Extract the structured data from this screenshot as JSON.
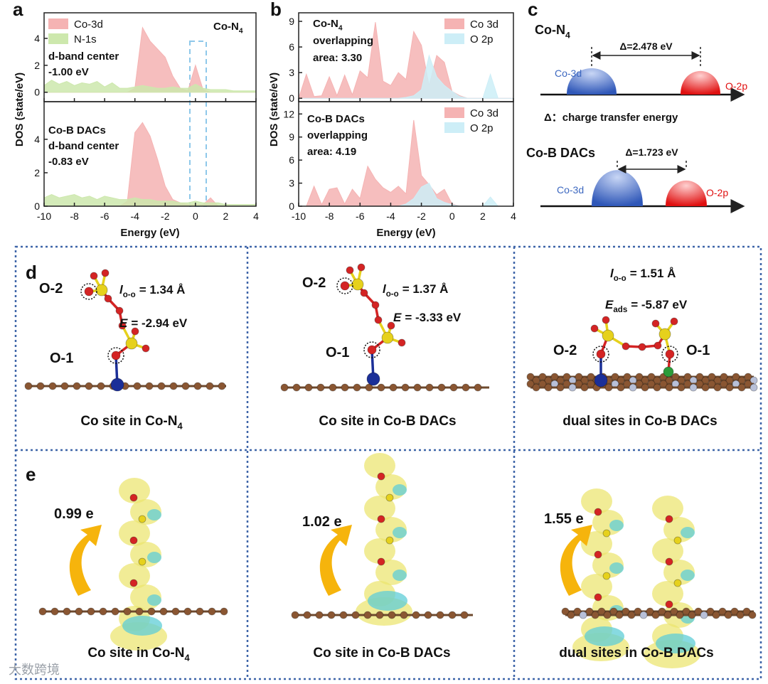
{
  "panel_labels": [
    "a",
    "b",
    "c",
    "d",
    "e"
  ],
  "chart_data": [
    {
      "type": "area",
      "ylabel": "DOS (state/eV)",
      "x": [
        -10,
        -9.5,
        -9,
        -8.5,
        -8,
        -7.5,
        -7,
        -6.5,
        -6,
        -5.5,
        -5,
        -4.5,
        -4,
        -3.5,
        -3,
        -2.5,
        -2,
        -1.5,
        -1,
        -0.5,
        0,
        0.5,
        1,
        1.5,
        2,
        2.5,
        3,
        3.5,
        4
      ],
      "series": [
        {
          "name": "Co-3d",
          "color": "#f5b3b3",
          "values": [
            0,
            0,
            0,
            0,
            0,
            0,
            0,
            0,
            0,
            0,
            0,
            0,
            0.3,
            4.8,
            3.8,
            3.2,
            2.6,
            1.2,
            0.3,
            0.1,
            2.0,
            0.2,
            0,
            0,
            0,
            0,
            0,
            0,
            0
          ]
        },
        {
          "name": "N-1s",
          "color": "#cde8ad",
          "values": [
            0.5,
            0.9,
            0.6,
            0.8,
            0.5,
            0.7,
            0.6,
            0.8,
            0.4,
            0.7,
            0.3,
            0.3,
            0.4,
            0.5,
            0.4,
            0.3,
            0.3,
            0.4,
            0.3,
            0.3,
            0.6,
            0.3,
            0.2,
            0.2,
            0.2,
            0.1,
            0.1,
            0.1,
            0.1
          ]
        }
      ],
      "xlim": [
        -10,
        4
      ],
      "ylim": [
        -0.7,
        5.9
      ],
      "yticks": [
        0,
        2,
        4
      ],
      "legend": "upper left",
      "annotations": [
        {
          "text": "Co-N",
          "sub": "4"
        },
        {
          "text": "d-band center"
        },
        {
          "text": "-1.00 eV"
        }
      ]
    },
    {
      "type": "area",
      "xlabel": "Energy (eV)",
      "x": [
        -10,
        -9.5,
        -9,
        -8.5,
        -8,
        -7.5,
        -7,
        -6.5,
        -6,
        -5.5,
        -5,
        -4.5,
        -4,
        -3.5,
        -3,
        -2.5,
        -2,
        -1.5,
        -1,
        -0.5,
        0,
        0.5,
        1,
        1.5,
        2,
        2.5,
        3,
        3.5,
        4
      ],
      "series": [
        {
          "color": "#f5b3b3",
          "values": [
            0,
            0,
            0,
            0,
            0,
            0,
            0,
            0,
            0,
            0,
            0,
            0.3,
            4.4,
            5.0,
            4.2,
            2.8,
            1.2,
            0.4,
            0.2,
            0.1,
            0.1,
            0.1,
            0.5,
            0,
            0,
            0,
            0,
            0,
            0
          ]
        },
        {
          "color": "#cde8ad",
          "values": [
            0.5,
            0.7,
            0.5,
            0.6,
            0.7,
            0.5,
            0.6,
            0.4,
            0.6,
            0.5,
            0.4,
            0.4,
            0.5,
            0.4,
            0.4,
            0.3,
            0.3,
            0.3,
            0.2,
            0.2,
            0.3,
            0.2,
            0.2,
            0.2,
            0.1,
            0.1,
            0.1,
            0.1,
            0.1
          ]
        }
      ],
      "xlim": [
        -10,
        4
      ],
      "xticks": [
        -10,
        -8,
        -6,
        -4,
        -2,
        0,
        2,
        4
      ],
      "ylim": [
        0,
        6.25
      ],
      "yticks": [
        0,
        2,
        4
      ],
      "annotations": [
        {
          "text": "Co-B DACs"
        },
        {
          "text": "d-band center"
        },
        {
          "text": "-0.83 eV"
        }
      ]
    },
    {
      "type": "area",
      "ylabel": "DOS (state/eV)",
      "x": [
        -10,
        -9.5,
        -9,
        -8.5,
        -8,
        -7.5,
        -7,
        -6.5,
        -6,
        -5.5,
        -5,
        -4.5,
        -4,
        -3.5,
        -3,
        -2.5,
        -2,
        -1.5,
        -1,
        -0.5,
        0,
        0.5,
        1,
        1.5,
        2,
        2.5,
        3,
        3.5,
        4
      ],
      "series": [
        {
          "name": "Co 3d",
          "color": "#f5b3b3",
          "values": [
            0,
            2.8,
            0.2,
            0.3,
            2.5,
            0.3,
            2.7,
            0.4,
            3.2,
            2.4,
            8.9,
            2.0,
            1.5,
            3.0,
            2.2,
            7.8,
            6.2,
            1.5,
            5.0,
            4.2,
            0.8,
            0.3,
            0,
            0,
            0,
            0,
            0,
            0,
            0
          ]
        },
        {
          "name": "O 2p",
          "color": "#cdeef7",
          "values": [
            0,
            0,
            0,
            0,
            0,
            0,
            0,
            0,
            0,
            0,
            0,
            0,
            0,
            0,
            0.1,
            0.3,
            1.0,
            5.0,
            2.5,
            1.5,
            0.8,
            0.2,
            0,
            0,
            0,
            2.8,
            0,
            0,
            0
          ]
        }
      ],
      "xlim": [
        -10,
        4
      ],
      "ylim": [
        -0.4,
        10
      ],
      "yticks": [
        0,
        3,
        6,
        9
      ],
      "legend": "upper right",
      "annotations": [
        {
          "text": "Co-N",
          "sub": "4"
        },
        {
          "text": "overlapping"
        },
        {
          "text": "area: 3.30"
        }
      ]
    },
    {
      "type": "area",
      "xlabel": "Energy (eV)",
      "x": [
        -10,
        -9.5,
        -9,
        -8.5,
        -8,
        -7.5,
        -7,
        -6.5,
        -6,
        -5.5,
        -5,
        -4.5,
        -4,
        -3.5,
        -3,
        -2.5,
        -2,
        -1.5,
        -1,
        -0.5,
        0,
        0.5,
        1,
        1.5,
        2,
        2.5,
        3,
        3.5,
        4
      ],
      "series": [
        {
          "name": "Co 3d",
          "color": "#f5b3b3",
          "values": [
            0,
            0,
            2.6,
            0.2,
            2.2,
            2.4,
            0.3,
            2.2,
            1.0,
            5.2,
            3.5,
            2.4,
            1.8,
            2.6,
            1.6,
            11.2,
            4.0,
            2.8,
            1.5,
            2.2,
            0.3,
            0,
            0,
            0,
            0,
            0,
            0,
            0,
            0
          ]
        },
        {
          "name": "O 2p",
          "color": "#cdeef7",
          "values": [
            0,
            0,
            0,
            0,
            0,
            0,
            0,
            0,
            0,
            0,
            0,
            0,
            0,
            0,
            0.3,
            1.0,
            2.5,
            3.0,
            1.0,
            0.5,
            0.2,
            0,
            0,
            0,
            0,
            1.2,
            0,
            0,
            0
          ]
        }
      ],
      "xlim": [
        -10,
        4
      ],
      "xticks": [
        -10,
        -8,
        -6,
        -4,
        -2,
        0,
        2,
        4
      ],
      "ylim": [
        0,
        13.6
      ],
      "yticks": [
        0,
        3,
        6,
        9,
        12
      ],
      "legend": "upper right",
      "annotations": [
        {
          "text": "Co-B DACs"
        },
        {
          "text": "overlapping"
        },
        {
          "text": "area: 4.19"
        }
      ]
    }
  ],
  "panel_c": {
    "rows": [
      {
        "title": {
          "text": "Co-N",
          "sub": "4"
        },
        "delta": "Δ=2.478 eV",
        "left": "Co-3d",
        "right": "O-2p"
      },
      {
        "title": {
          "text": "Co-B DACs"
        },
        "delta": "Δ=1.723 eV",
        "left": "Co-3d",
        "right": "O-2p"
      }
    ],
    "note": "Δ：charge transfer energy"
  },
  "panel_d": {
    "cells": [
      {
        "label_o2": "O-2",
        "bond": {
          "var": "l",
          "sub": "o-o",
          "text": "= 1.34 Å"
        },
        "energy": {
          "var": "E",
          "text": "= -2.94 eV"
        },
        "label_o1": "O-1",
        "caption": {
          "text": "Co site in Co-N",
          "sub": "4"
        }
      },
      {
        "label_o2": "O-2",
        "bond": {
          "var": "l",
          "sub": "o-o",
          "text": "= 1.37 Å"
        },
        "energy": {
          "var": "E",
          "text": "= -3.33 eV"
        },
        "label_o1": "O-1",
        "caption": {
          "text": "Co site in Co-B DACs"
        }
      },
      {
        "label_o2": "O-2",
        "bond": {
          "var": "l",
          "sub": "o-o",
          "text": "= 1.51 Å"
        },
        "energy": {
          "var": "E",
          "sub": "ads",
          "text": "= -5.87 eV"
        },
        "label_o1": "O-1",
        "caption": {
          "text": "dual sites in Co-B DACs"
        }
      }
    ]
  },
  "panel_e": {
    "cells": [
      {
        "charge": "0.99 e",
        "caption": {
          "text": "Co site in Co-N",
          "sub": "4"
        }
      },
      {
        "charge": "1.02 e",
        "caption": {
          "text": "Co site in Co-B DACs"
        }
      },
      {
        "charge": "1.55 e",
        "caption": {
          "text": "dual sites in Co-B DACs"
        }
      }
    ]
  },
  "watermark": "大数跨境"
}
